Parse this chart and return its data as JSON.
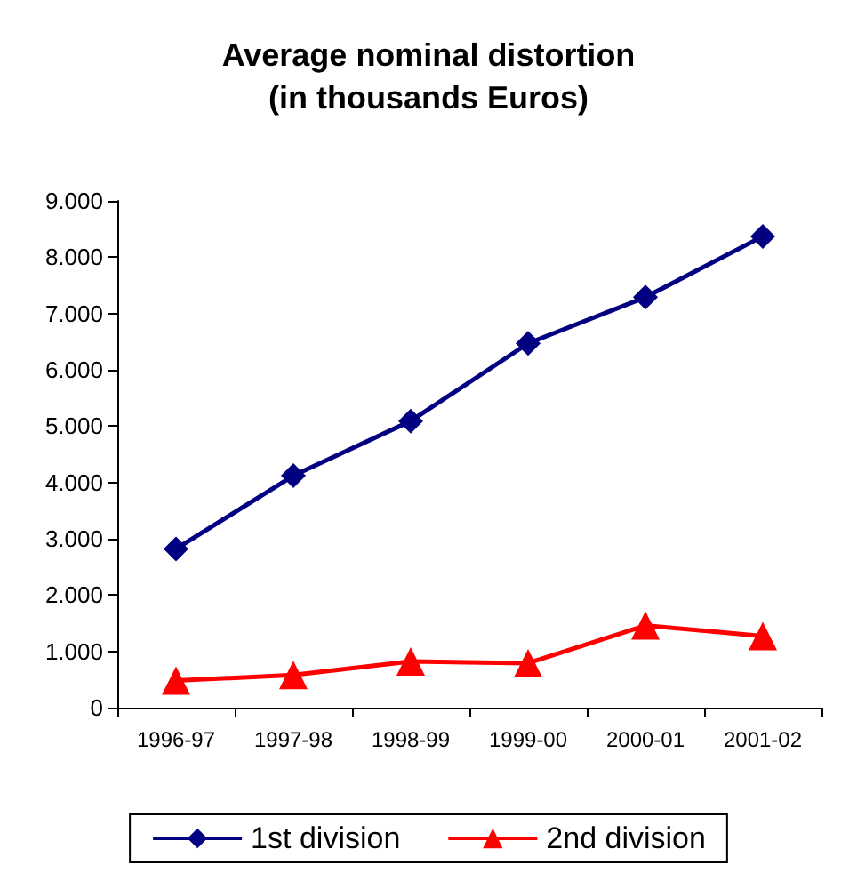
{
  "chart_data": {
    "type": "line",
    "title": "Average nominal distortion\n(in thousands Euros)",
    "categories": [
      "1996-97",
      "1997-98",
      "1998-99",
      "1999-00",
      "2000-01",
      "2001-02"
    ],
    "series": [
      {
        "name": "1st division",
        "color": "#000080",
        "marker": "diamond",
        "values": [
          2820,
          4120,
          5090,
          6470,
          7290,
          8370
        ]
      },
      {
        "name": "2nd division",
        "color": "#ff0000",
        "marker": "triangle",
        "values": [
          480,
          580,
          820,
          790,
          1460,
          1270
        ]
      }
    ],
    "ylim": [
      0,
      9000
    ],
    "yticks": [
      {
        "value": 0,
        "label": "0"
      },
      {
        "value": 1000,
        "label": "1.000"
      },
      {
        "value": 2000,
        "label": "2.000"
      },
      {
        "value": 3000,
        "label": "3.000"
      },
      {
        "value": 4000,
        "label": "4.000"
      },
      {
        "value": 5000,
        "label": "5.000"
      },
      {
        "value": 6000,
        "label": "6.000"
      },
      {
        "value": 7000,
        "label": "7.000"
      },
      {
        "value": 8000,
        "label": "8.000"
      },
      {
        "value": 9000,
        "label": "9.000"
      }
    ],
    "grid": false,
    "legend": "bottom",
    "line_style": "solid"
  }
}
